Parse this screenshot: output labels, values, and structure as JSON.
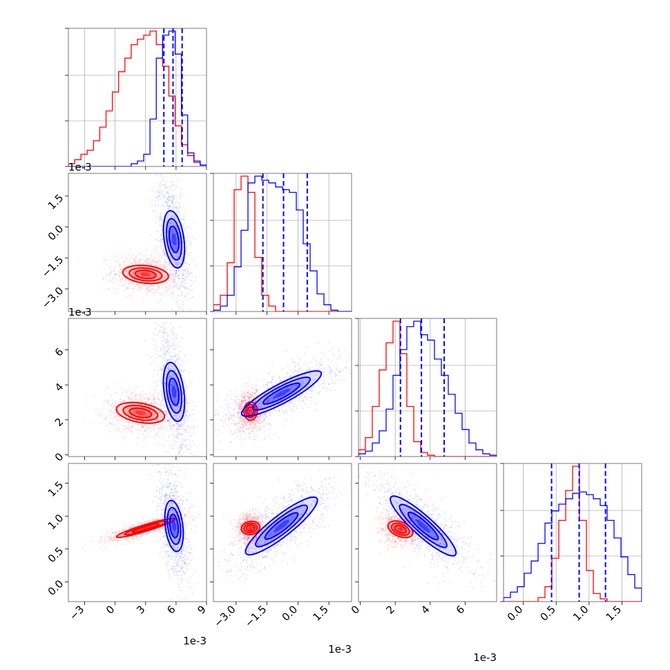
{
  "chart_data": {
    "type": "corner",
    "colors": {
      "red": "#ff0000",
      "blue": "#0000ff"
    },
    "grid": true,
    "parameters": [
      {
        "range": [
          -4.6,
          9.0
        ],
        "offset_label": "1e-3",
        "ticks": [
          -3,
          0,
          3,
          6,
          9
        ],
        "tick_labels": [
          "−3",
          "0",
          "3",
          "6",
          "9"
        ]
      },
      {
        "range": [
          -4.1,
          2.6
        ],
        "offset_label": "1e-3",
        "ticks": [
          -3.0,
          -1.5,
          0.0,
          1.5
        ],
        "tick_labels": [
          "−3.0",
          "−1.5",
          "0.0",
          "1.5"
        ]
      },
      {
        "range": [
          -0.1,
          7.8
        ],
        "offset_label": "1e-3",
        "ticks": [
          0,
          2,
          4,
          6
        ],
        "tick_labels": [
          "0",
          "2",
          "4",
          "6"
        ]
      },
      {
        "range": [
          -0.3,
          1.8
        ],
        "offset_label": "",
        "ticks": [
          0.0,
          0.5,
          1.0,
          1.5
        ],
        "tick_labels": [
          "0.0",
          "0.5",
          "1.0",
          "1.5"
        ]
      }
    ],
    "series": [
      {
        "color": "#ff0000",
        "means": [
          2.5,
          -2.3,
          2.3,
          0.8
        ],
        "sds": [
          1.3,
          0.3,
          0.5,
          0.12
        ],
        "quantiles": [],
        "hist": [
          [
            0.02,
            0.05,
            0.09,
            0.12,
            0.19,
            0.29,
            0.41,
            0.55,
            0.7,
            0.8,
            0.9,
            0.94,
            0.97,
            1.0,
            0.9,
            0.74,
            0.52,
            0.3,
            0.16,
            0.08,
            0.03,
            0.01
          ],
          [
            0.05,
            0.12,
            0.36,
            0.9,
            1.0,
            0.88,
            0.4,
            0.12,
            0.04,
            0,
            0,
            0,
            0,
            0,
            0,
            0,
            0,
            0,
            0,
            0
          ],
          [
            0.05,
            0.14,
            0.37,
            0.64,
            0.84,
            1.0,
            0.76,
            0.37,
            0.11,
            0.03,
            0.01,
            0,
            0,
            0,
            0,
            0,
            0,
            0,
            0,
            0
          ],
          [
            0,
            0,
            0,
            0,
            0,
            0.03,
            0.11,
            0.32,
            0.6,
            0.82,
            1.0,
            0.6,
            0.23,
            0.06,
            0.02,
            0,
            0,
            0,
            0,
            0
          ]
        ],
        "contours": [
          {
            "x": 0,
            "y": 1,
            "cx": 3.0,
            "cy": -2.3,
            "rx": 3.0,
            "ry": 0.85,
            "angle": -6
          },
          {
            "x": 0,
            "y": 2,
            "cx": 2.5,
            "cy": 2.4,
            "rx": 3.2,
            "ry": 1.1,
            "angle": -10
          },
          {
            "x": 0,
            "y": 3,
            "cx": 3.0,
            "cy": 0.82,
            "rx": 4.0,
            "ry": 0.1,
            "angle": 17
          },
          {
            "x": 1,
            "y": 2,
            "cx": -2.3,
            "cy": 2.5,
            "rx": 0.65,
            "ry": 1.05,
            "angle": 0
          },
          {
            "x": 1,
            "y": 3,
            "cx": -2.3,
            "cy": 0.82,
            "rx": 0.6,
            "ry": 0.2,
            "angle": 10
          },
          {
            "x": 2,
            "y": 3,
            "cx": 2.3,
            "cy": 0.8,
            "rx": 1.0,
            "ry": 0.22,
            "angle": -22
          }
        ]
      },
      {
        "color": "#0000ff",
        "means": [
          5.8,
          -0.7,
          3.5,
          0.85
        ],
        "sds": [
          0.85,
          1.0,
          1.2,
          0.4
        ],
        "quantiles": [
          [
            4.8,
            5.7,
            6.6
          ],
          [
            -1.7,
            -0.7,
            0.45
          ],
          [
            2.3,
            3.5,
            4.8
          ],
          [
            0.43,
            0.85,
            1.25
          ]
        ],
        "hist": [
          [
            0,
            0,
            0,
            0,
            0,
            0,
            0,
            0,
            0,
            0,
            0.02,
            0.04,
            0.09,
            0.35,
            0.8,
            0.97,
            1.0,
            0.83,
            0.38,
            0.1,
            0.04,
            0.01
          ],
          [
            0.01,
            0.04,
            0.12,
            0.33,
            0.6,
            0.95,
            1.0,
            0.97,
            0.95,
            0.92,
            0.9,
            0.88,
            0.75,
            0.5,
            0.3,
            0.13,
            0.05,
            0.01,
            0,
            0
          ],
          [
            0.02,
            0.04,
            0.1,
            0.19,
            0.35,
            0.6,
            0.79,
            0.96,
            1.0,
            0.9,
            0.86,
            0.72,
            0.6,
            0.46,
            0.32,
            0.2,
            0.1,
            0.05,
            0.02,
            0.01
          ],
          [
            0.03,
            0.07,
            0.11,
            0.21,
            0.3,
            0.43,
            0.58,
            0.67,
            0.72,
            0.76,
            0.8,
            0.81,
            0.79,
            0.76,
            0.71,
            0.6,
            0.47,
            0.33,
            0.2,
            0.1
          ]
        ],
        "contours": [
          {
            "x": 0,
            "y": 1,
            "cx": 5.8,
            "cy": -0.6,
            "rx": 1.3,
            "ry": 2.8,
            "angle": 8
          },
          {
            "x": 0,
            "y": 2,
            "cx": 5.8,
            "cy": 3.6,
            "rx": 1.3,
            "ry": 3.4,
            "angle": 8
          },
          {
            "x": 0,
            "y": 3,
            "cx": 5.8,
            "cy": 0.85,
            "rx": 1.15,
            "ry": 0.78,
            "angle": 7
          },
          {
            "x": 1,
            "y": 2,
            "cx": -0.8,
            "cy": 3.5,
            "rx": 2.9,
            "ry": 1.1,
            "angle": 28
          },
          {
            "x": 1,
            "y": 3,
            "cx": -0.8,
            "cy": 0.85,
            "rx": 2.9,
            "ry": 0.32,
            "angle": 38
          },
          {
            "x": 2,
            "y": 3,
            "cx": 3.6,
            "cy": 0.85,
            "rx": 3.3,
            "ry": 0.3,
            "angle": -42
          }
        ]
      }
    ]
  }
}
